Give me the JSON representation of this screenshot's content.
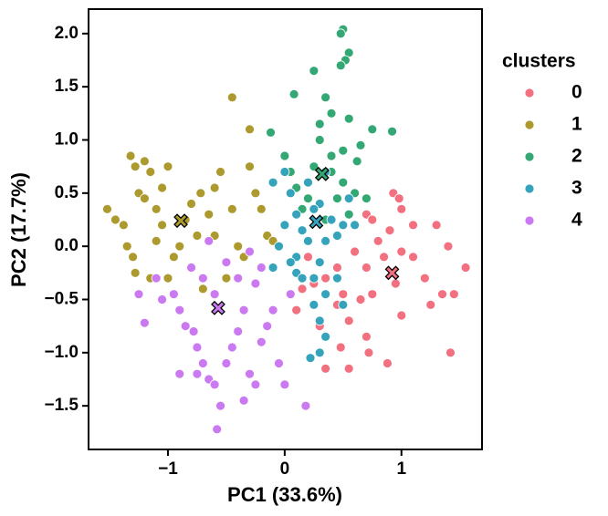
{
  "chart_data": {
    "type": "scatter",
    "xlabel": "PC1 (33.6%)",
    "ylabel": "PC2 (17.7%)",
    "xlim": [
      -1.68,
      1.69
    ],
    "ylim": [
      -1.91,
      2.23
    ],
    "xticks": [
      {
        "value": -1,
        "label": "−1"
      },
      0,
      1
    ],
    "yticks": [
      {
        "value": -1.5,
        "label": "−1.5"
      },
      {
        "value": -1,
        "label": "−1.0"
      },
      {
        "value": -0.5,
        "label": "−0.5"
      },
      {
        "value": 0,
        "label": "0.0"
      },
      {
        "value": 0.5,
        "label": "0.5"
      },
      {
        "value": 1,
        "label": "1.0"
      },
      {
        "value": 1.5,
        "label": "1.5"
      },
      {
        "value": 2,
        "label": "2.0"
      }
    ],
    "grid": false,
    "legend_title": "clusters",
    "series": [
      {
        "name": "0",
        "color": "#f2707f",
        "centroid": [
          0.92,
          -0.25
        ],
        "x": [
          0.93,
          0.98,
          1.0,
          0.7,
          0.75,
          0.9,
          1.1,
          1.3,
          1.4,
          1.55,
          1.45,
          1.35,
          1.2,
          1.1,
          1.0,
          0.85,
          0.7,
          0.75,
          0.65,
          0.5,
          0.35,
          0.25,
          0.3,
          0.15,
          0.1,
          0.3,
          0.45,
          0.55,
          0.7,
          0.72,
          0.55,
          0.35,
          0.48,
          0.88,
          1.0,
          1.25,
          1.42,
          0.6,
          0.8,
          0.95,
          0.2,
          0.45
        ],
        "y": [
          0.5,
          0.45,
          0.35,
          0.3,
          0.25,
          0.15,
          0.2,
          0.2,
          0.0,
          -0.2,
          -0.45,
          -0.45,
          -0.3,
          -0.1,
          -0.05,
          -0.1,
          -0.2,
          -0.45,
          -0.5,
          -0.45,
          -0.3,
          -0.35,
          -0.15,
          -0.4,
          -0.6,
          -0.75,
          -0.55,
          -0.7,
          -0.85,
          -1.0,
          -1.15,
          -1.15,
          -0.95,
          -1.1,
          -0.65,
          -0.55,
          -1.0,
          -0.05,
          0.05,
          -0.35,
          -0.1,
          -0.2
        ]
      },
      {
        "name": "1",
        "color": "#ad9a2f",
        "centroid": [
          -0.89,
          0.24
        ],
        "x": [
          -1.52,
          -1.45,
          -1.38,
          -1.35,
          -1.3,
          -1.28,
          -1.25,
          -1.28,
          -1.32,
          -1.2,
          -1.15,
          -1.2,
          -1.1,
          -1.05,
          -1.15,
          -1.0,
          -1.05,
          -1.0,
          -0.75,
          -0.8,
          -0.72,
          -0.6,
          -0.55,
          -0.45,
          -0.4,
          -0.45,
          -0.3,
          -0.3,
          -0.25,
          -0.2,
          -0.15,
          -0.1,
          -0.35,
          -0.6,
          -0.85,
          -0.95,
          -0.5,
          -0.7,
          -0.9,
          -0.65,
          -1.1
        ],
        "y": [
          0.35,
          0.25,
          0.2,
          0.0,
          -0.1,
          -0.25,
          0.5,
          0.75,
          0.85,
          0.8,
          0.7,
          0.45,
          0.35,
          0.2,
          -0.3,
          -0.3,
          0.55,
          0.75,
          0.1,
          0.4,
          0.5,
          0.55,
          0.7,
          0.35,
          0.0,
          1.4,
          1.1,
          0.75,
          0.5,
          0.35,
          0.1,
          0.05,
          -0.1,
          0.1,
          0.25,
          -0.1,
          -0.3,
          -0.4,
          0.0,
          0.3,
          0.05
        ]
      },
      {
        "name": "2",
        "color": "#33a874",
        "centroid": [
          0.32,
          0.68
        ],
        "x": [
          0.5,
          0.48,
          0.55,
          0.52,
          0.48,
          0.25,
          0.08,
          0.35,
          0.4,
          0.55,
          0.75,
          0.92,
          -0.12,
          0.3,
          0.5,
          0.62,
          0.4,
          0.5,
          0.25,
          0.0,
          0.1,
          0.45,
          0.55,
          0.35,
          0.6,
          0.7,
          0.15,
          0.2,
          0.05,
          0.4,
          0.65,
          0.3
        ],
        "y": [
          2.04,
          2.0,
          1.82,
          1.75,
          1.7,
          1.65,
          1.43,
          1.4,
          1.25,
          1.2,
          1.1,
          1.08,
          1.07,
          1.0,
          0.9,
          0.8,
          0.7,
          0.6,
          0.75,
          0.85,
          0.55,
          0.45,
          0.3,
          0.25,
          0.5,
          0.45,
          0.35,
          0.45,
          0.7,
          0.85,
          0.95,
          1.15
        ]
      },
      {
        "name": "3",
        "color": "#35a3bb",
        "centroid": [
          0.27,
          0.23
        ],
        "x": [
          -0.1,
          0.0,
          0.05,
          0.1,
          0.15,
          0.2,
          0.1,
          0.0,
          -0.05,
          0.3,
          0.4,
          0.5,
          0.55,
          0.6,
          0.45,
          0.35,
          0.3,
          0.25,
          0.35,
          0.25,
          0.3,
          0.35,
          0.3,
          0.22,
          0.5,
          0.45,
          0.1,
          0.15,
          -0.1,
          0.05,
          0.2,
          0.35,
          0.25
        ],
        "y": [
          0.6,
          0.7,
          0.5,
          0.3,
          0.15,
          0.05,
          -0.1,
          0.2,
          0.0,
          0.4,
          0.25,
          0.2,
          0.45,
          0.2,
          0.1,
          0.05,
          -0.15,
          -0.3,
          -0.45,
          -0.55,
          -0.7,
          -0.85,
          -1.0,
          -1.05,
          -0.55,
          -0.3,
          -0.25,
          -0.3,
          -0.2,
          -0.15,
          0.6,
          0.7,
          0.35
        ]
      },
      {
        "name": "4",
        "color": "#cb79f1",
        "centroid": [
          -0.57,
          -0.58
        ],
        "x": [
          -1.25,
          -1.2,
          -1.05,
          -0.95,
          -0.9,
          -0.85,
          -0.78,
          -0.75,
          -0.7,
          -0.75,
          -0.65,
          -0.6,
          -0.55,
          -0.58,
          -0.5,
          -0.45,
          -0.4,
          -0.35,
          -0.3,
          -0.25,
          -0.35,
          -0.2,
          -0.15,
          -0.1,
          -0.05,
          0.0,
          0.18,
          -0.4,
          -0.5,
          -0.6,
          -0.7,
          -0.8,
          -0.9,
          -1.1,
          -0.2,
          -0.25,
          0.05,
          -0.65,
          -0.3
        ],
        "y": [
          -0.45,
          -0.72,
          -0.5,
          -0.45,
          -0.6,
          -0.75,
          -0.8,
          -0.95,
          -1.1,
          -1.2,
          -1.25,
          -1.3,
          -1.5,
          -1.72,
          -1.1,
          -0.95,
          -0.8,
          -0.6,
          -1.2,
          -1.3,
          -1.45,
          -0.9,
          -0.75,
          -0.6,
          -1.1,
          -1.3,
          -1.5,
          -0.3,
          -0.15,
          -0.45,
          -0.3,
          -0.2,
          -1.2,
          -0.3,
          -0.2,
          -0.35,
          -0.45,
          0.05,
          -0.05
        ]
      }
    ]
  }
}
